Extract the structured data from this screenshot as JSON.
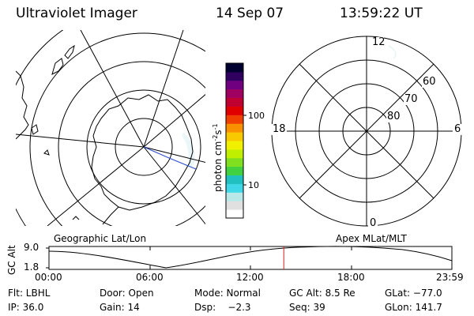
{
  "header": {
    "instrument": "Ultraviolet Imager",
    "date": "14 Sep 07",
    "time": "13:59:22 UT"
  },
  "left_map": {
    "caption": "Geographic Lat/Lon"
  },
  "right_map": {
    "caption": "Apex MLat/MLT",
    "mlt_labels": {
      "top": "12",
      "bottom": "0",
      "left": "18",
      "right": "6"
    },
    "lat_labels": [
      "60",
      "70",
      "80"
    ]
  },
  "colorbar": {
    "unit_prefix": "photon cm",
    "unit_exp1": "-2",
    "unit_mid": "s",
    "unit_exp2": "-1",
    "tick_100": "100",
    "tick_10": "10",
    "colors": [
      "#ffffff",
      "#e0e0e0",
      "#b8e8e8",
      "#40d8e8",
      "#20c0c0",
      "#40d040",
      "#80e020",
      "#c0f000",
      "#f0f000",
      "#f8c800",
      "#f89000",
      "#f04000",
      "#e00000",
      "#c00030",
      "#a00060",
      "#700080",
      "#300060",
      "#000030"
    ]
  },
  "altitude_strip": {
    "ylabel": "GC Alt",
    "ymax_label": "9.0",
    "ymin_label": "1.8",
    "time_ticks": [
      "00:00",
      "06:00",
      "12:00",
      "18:00",
      "23:59"
    ],
    "current_time_fraction": 0.5828,
    "current_marker_color": "#d02020"
  },
  "status": {
    "flt": "Flt: LBHL",
    "door": "Door: Open",
    "mode": "Mode: Normal",
    "gc_alt": "GC Alt: 8.5 Re",
    "glat": "GLat: −77.0",
    "ip": "IP: 36.0",
    "gain": "Gain: 14",
    "dsp": "Dsp:    −2.3",
    "seq": "Seq: 39",
    "glon": "GLon: 141.7"
  }
}
